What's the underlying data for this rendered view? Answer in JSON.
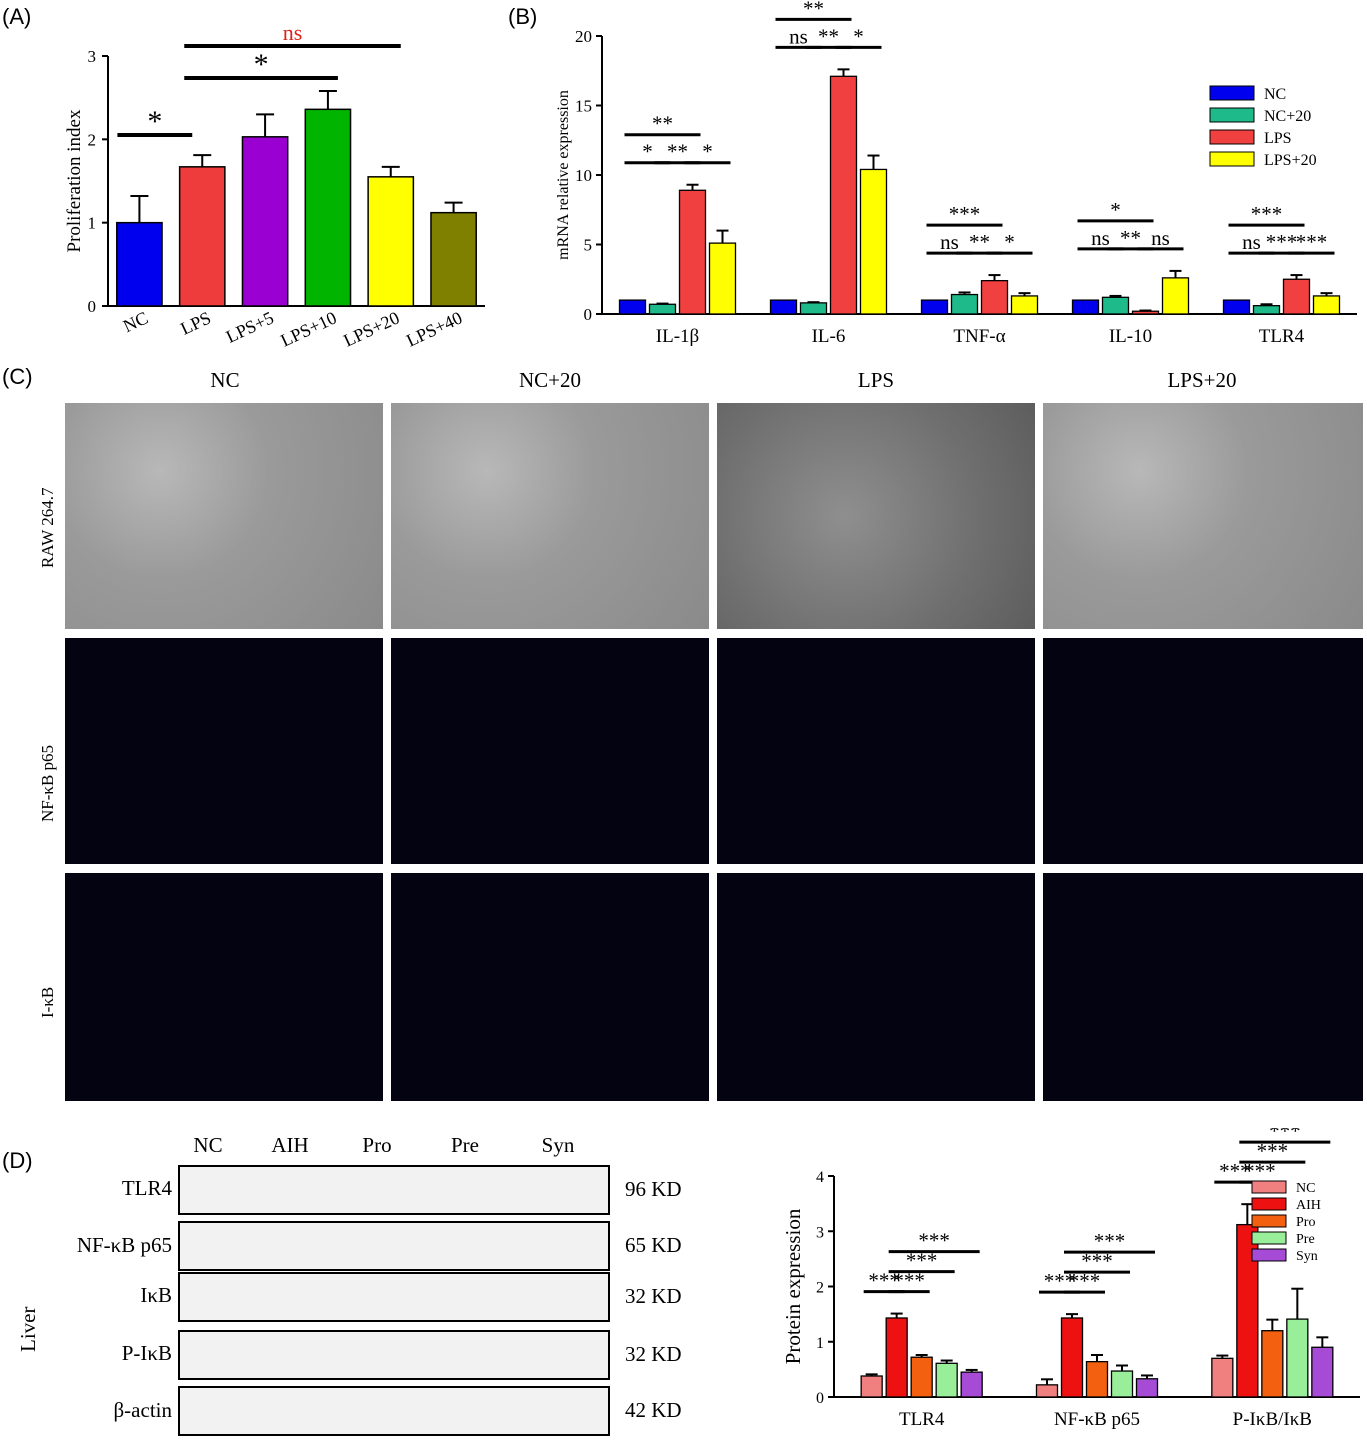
{
  "panels": {
    "a": "(A)",
    "b": "(B)",
    "c": "(C)",
    "d": "(D)"
  },
  "chart_data": [
    {
      "type": "bar",
      "ylabel": "Proliferation index",
      "ylim": [
        0,
        3
      ],
      "yticks": [
        0,
        1,
        2,
        3
      ],
      "categories": [
        "NC",
        "LPS",
        "LPS+5",
        "LPS+10",
        "LPS+20",
        "LPS+40"
      ],
      "values": [
        1.0,
        1.67,
        2.03,
        2.36,
        1.55,
        1.12
      ],
      "errors": [
        0.32,
        0.14,
        0.27,
        0.22,
        0.12,
        0.12
      ],
      "colors": [
        "#0000ee",
        "#ee3b3b",
        "#9b00d3",
        "#00b400",
        "#ffff00",
        "#808000"
      ],
      "annotations": [
        {
          "text": "*",
          "from": "NC",
          "to": "LPS",
          "color": "#000000"
        },
        {
          "text": "*",
          "from": "LPS",
          "to": "LPS+10",
          "color": "#000000"
        },
        {
          "text": "ns",
          "from": "LPS",
          "to": "LPS+20",
          "color": "#e0201b"
        }
      ]
    },
    {
      "type": "bar",
      "ylabel": "mRNA relative expression",
      "ylim": [
        0,
        20
      ],
      "yticks": [
        0,
        5,
        10,
        15,
        20
      ],
      "categories": [
        "IL-1β",
        "IL-6",
        "TNF-α",
        "IL-10",
        "TLR4"
      ],
      "series": [
        {
          "name": "NC",
          "color": "#0000ee",
          "values": [
            1.0,
            1.0,
            1.0,
            1.0,
            1.0
          ],
          "errors": [
            0,
            0,
            0,
            0,
            0
          ]
        },
        {
          "name": "NC+20",
          "color": "#1fba8a",
          "values": [
            0.7,
            0.8,
            1.4,
            1.2,
            0.6
          ],
          "errors": [
            0.05,
            0.05,
            0.15,
            0.1,
            0.1
          ]
        },
        {
          "name": "LPS",
          "color": "#f04040",
          "values": [
            8.9,
            17.1,
            2.4,
            0.2,
            2.5
          ],
          "errors": [
            0.4,
            0.5,
            0.4,
            0.05,
            0.3
          ]
        },
        {
          "name": "LPS+20",
          "color": "#ffff00",
          "values": [
            5.1,
            10.4,
            1.3,
            2.6,
            1.3
          ],
          "errors": [
            0.9,
            1.0,
            0.2,
            0.5,
            0.2
          ]
        }
      ],
      "annotations": [
        {
          "category": "IL-1β",
          "labels": [
            "**",
            "*",
            "**",
            "*"
          ]
        },
        {
          "category": "IL-6",
          "labels": [
            "**",
            "ns",
            "**",
            "*"
          ]
        },
        {
          "category": "TNF-α",
          "labels": [
            "***",
            "ns",
            "**",
            "*"
          ]
        },
        {
          "category": "IL-10",
          "labels": [
            "*",
            "ns",
            "**",
            "ns"
          ]
        },
        {
          "category": "TLR4",
          "labels": [
            "***",
            "ns",
            "***",
            "***"
          ]
        }
      ],
      "legend": "top-right"
    },
    {
      "type": "bar",
      "ylabel": "Protein expression",
      "ylim": [
        0,
        4
      ],
      "yticks": [
        0,
        1,
        2,
        3,
        4
      ],
      "categories": [
        "TLR4",
        "NF-κB p65",
        "P-IκB/IκB"
      ],
      "series": [
        {
          "name": "NC",
          "color": "#f08080",
          "values": [
            0.38,
            0.22,
            0.7
          ],
          "errors": [
            0.03,
            0.1,
            0.05
          ]
        },
        {
          "name": "AIH",
          "color": "#ee1111",
          "values": [
            1.43,
            1.43,
            3.12
          ],
          "errors": [
            0.08,
            0.07,
            0.37
          ]
        },
        {
          "name": "Pro",
          "color": "#f26010",
          "values": [
            0.72,
            0.64,
            1.2
          ],
          "errors": [
            0.04,
            0.12,
            0.2
          ]
        },
        {
          "name": "Pre",
          "color": "#99ee99",
          "values": [
            0.61,
            0.47,
            1.41
          ],
          "errors": [
            0.05,
            0.1,
            0.55
          ]
        },
        {
          "name": "Syn",
          "color": "#a64bd6",
          "values": [
            0.45,
            0.33,
            0.9
          ],
          "errors": [
            0.04,
            0.06,
            0.18
          ]
        }
      ],
      "annotations": [
        {
          "category": "TLR4",
          "labels": [
            "***",
            "***",
            "***",
            "***"
          ]
        },
        {
          "category": "NF-κB p65",
          "labels": [
            "***",
            "***",
            "***",
            "***"
          ]
        },
        {
          "category": "P-IκB/IκB",
          "labels": [
            "***",
            "***",
            "***",
            "***"
          ]
        }
      ],
      "legend": "top-right"
    }
  ],
  "panel_c": {
    "columns": [
      "NC",
      "NC+20",
      "LPS",
      "LPS+20"
    ],
    "rows": [
      "RAW 264.7",
      "NF-κB p65",
      "I-κB"
    ]
  },
  "panel_d": {
    "tissue": "Liver",
    "lanes": [
      "NC",
      "AIH",
      "Pro",
      "Pre",
      "Syn"
    ],
    "blots": [
      {
        "protein": "TLR4",
        "kd": "96 KD"
      },
      {
        "protein": "NF-κB p65",
        "kd": "65 KD"
      },
      {
        "protein": "IκB",
        "kd": "32 KD"
      },
      {
        "protein": "P-IκB",
        "kd": "32 KD"
      },
      {
        "protein": "β-actin",
        "kd": "42 KD"
      }
    ]
  }
}
